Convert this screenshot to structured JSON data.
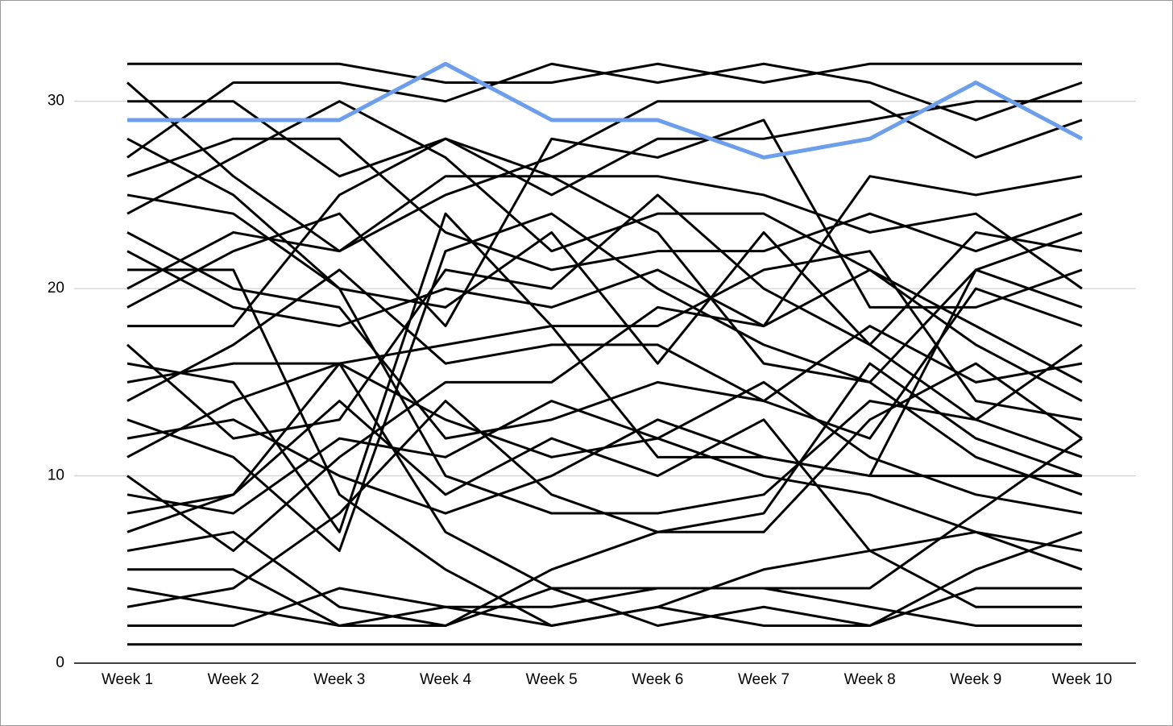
{
  "chart_data": {
    "type": "line",
    "categories": [
      "Week 1",
      "Week 2",
      "Week 3",
      "Week 4",
      "Week 5",
      "Week 6",
      "Week 7",
      "Week 8",
      "Week 9",
      "Week 10"
    ],
    "ylim": [
      0,
      33
    ],
    "yticks": [
      0,
      10,
      20,
      30
    ],
    "grid": true,
    "series": [
      {
        "color": "#000000",
        "values": [
          1,
          1,
          1,
          1,
          1,
          1,
          1,
          1,
          1,
          1
        ]
      },
      {
        "color": "#000000",
        "values": [
          2,
          2,
          4,
          3,
          3,
          4,
          4,
          3,
          2,
          2
        ]
      },
      {
        "color": "#000000",
        "values": [
          3,
          4,
          8,
          14,
          9,
          7,
          7,
          13,
          16,
          12
        ]
      },
      {
        "color": "#000000",
        "values": [
          4,
          3,
          2,
          3,
          2,
          3,
          2,
          2,
          5,
          7
        ]
      },
      {
        "color": "#000000",
        "values": [
          5,
          5,
          2,
          2,
          4,
          4,
          4,
          4,
          8,
          12
        ]
      },
      {
        "color": "#000000",
        "values": [
          6,
          7,
          3,
          2,
          5,
          7,
          8,
          16,
          12,
          10
        ]
      },
      {
        "color": "#000000",
        "values": [
          7,
          9,
          16,
          13,
          11,
          12,
          10,
          9,
          7,
          6
        ]
      },
      {
        "color": "#000000",
        "values": [
          8,
          9,
          14,
          9,
          12,
          10,
          13,
          6,
          3,
          3
        ]
      },
      {
        "color": "#000000",
        "values": [
          9,
          8,
          12,
          11,
          14,
          12,
          15,
          11,
          9,
          8
        ]
      },
      {
        "color": "#000000",
        "values": [
          10,
          6,
          11,
          15,
          15,
          19,
          18,
          21,
          17,
          14
        ]
      },
      {
        "color": "#000000",
        "values": [
          11,
          14,
          16,
          17,
          18,
          18,
          21,
          22,
          14,
          13
        ]
      },
      {
        "color": "#000000",
        "values": [
          12,
          13,
          10,
          8,
          10,
          13,
          11,
          10,
          10,
          10
        ]
      },
      {
        "color": "#000000",
        "values": [
          13,
          11,
          6,
          22,
          24,
          20,
          17,
          15,
          11,
          9
        ]
      },
      {
        "color": "#000000",
        "values": [
          14,
          17,
          21,
          16,
          17,
          17,
          14,
          18,
          15,
          16
        ]
      },
      {
        "color": "#000000",
        "values": [
          15,
          16,
          16,
          7,
          4,
          2,
          3,
          2,
          4,
          4
        ]
      },
      {
        "color": "#000000",
        "values": [
          16,
          15,
          7,
          24,
          18,
          11,
          11,
          10,
          21,
          19
        ]
      },
      {
        "color": "#000000",
        "values": [
          17,
          12,
          13,
          21,
          20,
          25,
          20,
          17,
          13,
          11
        ]
      },
      {
        "color": "#000000",
        "values": [
          18,
          18,
          25,
          28,
          26,
          26,
          25,
          23,
          24,
          20
        ]
      },
      {
        "color": "#000000",
        "values": [
          19,
          22,
          24,
          18,
          28,
          27,
          29,
          19,
          19,
          21
        ]
      },
      {
        "color": "#000000",
        "values": [
          20,
          23,
          22,
          25,
          27,
          30,
          30,
          30,
          27,
          29
        ]
      },
      {
        "color": "#000000",
        "values": [
          21,
          21,
          9,
          5,
          2,
          3,
          5,
          6,
          7,
          5
        ]
      },
      {
        "color": "#000000",
        "values": [
          22,
          19,
          18,
          20,
          19,
          21,
          18,
          26,
          25,
          26
        ]
      },
      {
        "color": "#000000",
        "values": [
          23,
          20,
          19,
          12,
          13,
          15,
          14,
          12,
          20,
          18
        ]
      },
      {
        "color": "#000000",
        "values": [
          24,
          27,
          30,
          27,
          22,
          24,
          24,
          21,
          18,
          15
        ]
      },
      {
        "color": "#000000",
        "values": [
          25,
          24,
          20,
          19,
          23,
          16,
          23,
          17,
          23,
          22
        ]
      },
      {
        "color": "#000000",
        "values": [
          26,
          28,
          28,
          23,
          21,
          22,
          22,
          24,
          22,
          24
        ]
      },
      {
        "color": "#000000",
        "values": [
          27,
          31,
          31,
          30,
          32,
          31,
          32,
          31,
          29,
          31
        ]
      },
      {
        "color": "#000000",
        "values": [
          28,
          25,
          20,
          10,
          8,
          8,
          9,
          14,
          13,
          17
        ]
      },
      {
        "color": "#000000",
        "values": [
          30,
          30,
          26,
          28,
          25,
          28,
          28,
          29,
          30,
          30
        ]
      },
      {
        "color": "#000000",
        "values": [
          31,
          26,
          22,
          26,
          26,
          23,
          16,
          15,
          21,
          23
        ]
      },
      {
        "color": "#000000",
        "values": [
          32,
          32,
          32,
          31,
          31,
          32,
          31,
          32,
          32,
          32
        ]
      },
      {
        "color": "#6d9eeb",
        "values": [
          29,
          29,
          29,
          32,
          29,
          29,
          27,
          28,
          31,
          28
        ]
      }
    ]
  }
}
